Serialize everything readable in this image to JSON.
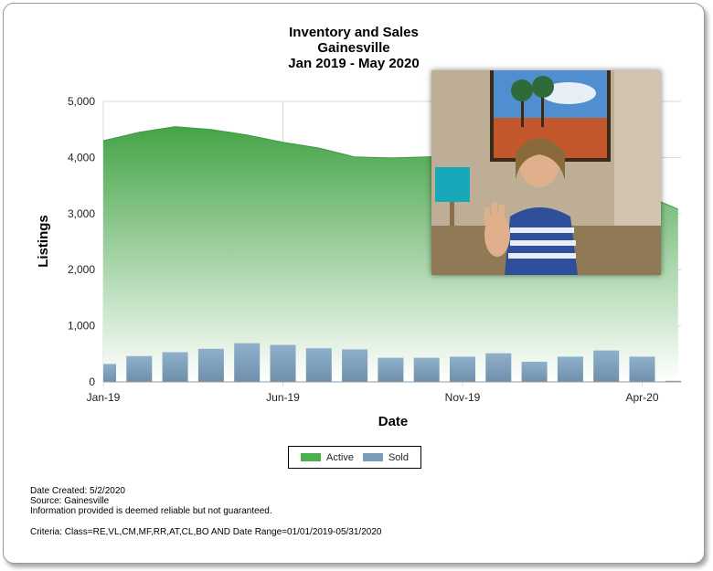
{
  "chart_data": {
    "type": "area+bar",
    "title_lines": [
      "Inventory and Sales",
      "Gainesville",
      "Jan 2019 - May 2020"
    ],
    "xlabel": "Date",
    "ylabel": "Listings",
    "ylim": [
      0,
      5000
    ],
    "yticks": [
      "0",
      "1,000",
      "2,000",
      "3,000",
      "4,000",
      "5,000"
    ],
    "ytick_values": [
      0,
      1000,
      2000,
      3000,
      4000,
      5000
    ],
    "xtick_labels": [
      "Jan-19",
      "Jun-19",
      "Nov-19",
      "Apr-20"
    ],
    "xtick_indices": [
      0,
      5,
      10,
      15
    ],
    "categories": [
      "Jan-19",
      "Feb-19",
      "Mar-19",
      "Apr-19",
      "May-19",
      "Jun-19",
      "Jul-19",
      "Aug-19",
      "Sep-19",
      "Oct-19",
      "Nov-19",
      "Dec-19",
      "Jan-20",
      "Feb-20",
      "Mar-20",
      "Apr-20",
      "May-20"
    ],
    "series": [
      {
        "name": "Active",
        "kind": "area",
        "color": "#4caf50",
        "values": [
          4300,
          4450,
          4550,
          4500,
          4400,
          4270,
          4170,
          4010,
          3990,
          4010,
          4030,
          3960,
          3890,
          3800,
          3600,
          3350,
          3080
        ]
      },
      {
        "name": "Sold",
        "kind": "bar",
        "color": "#7a9cb8",
        "values": [
          320,
          460,
          530,
          590,
          690,
          660,
          600,
          580,
          430,
          430,
          450,
          510,
          360,
          450,
          560,
          450,
          20
        ]
      }
    ],
    "grid": true,
    "legend_position": "bottom-center"
  },
  "footer": {
    "date_created": "Date Created: 5/2/2020",
    "source": "Source: Gainesville",
    "disclaimer": "Information provided is deemed reliable but not guaranteed.",
    "criteria": "Criteria: Class=RE,VL,CM,MF,RR,AT,CL,BO AND Date Range=01/01/2019-05/31/2020"
  },
  "colors": {
    "active": "#4caf50",
    "sold": "#7a9cb8",
    "grid": "#d8d8d8"
  }
}
